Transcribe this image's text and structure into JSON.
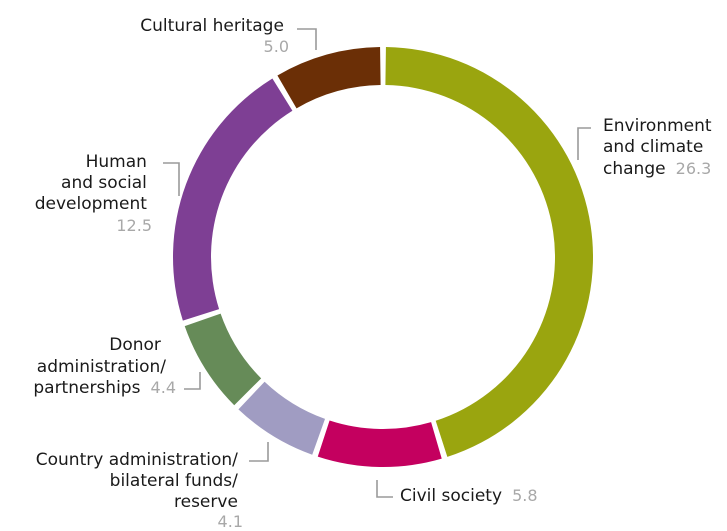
{
  "chart_data": {
    "type": "pie",
    "style": "donut",
    "title": "",
    "series": [
      {
        "name": "",
        "categories": [
          "Environment and climate change",
          "Civil society",
          "Country administration/ bilateral funds/ reserve",
          "Donor administration/ partnerships",
          "Human and social development",
          "Cultural heritage"
        ],
        "values": [
          26.3,
          5.8,
          4.1,
          4.4,
          12.5,
          5.0
        ]
      }
    ],
    "slices": [
      {
        "label_lines": [
          "Environment",
          "and climate",
          "change"
        ],
        "value": 26.3,
        "value_text": "26.3",
        "color": "#9aa50f"
      },
      {
        "label_lines": [
          "Civil society"
        ],
        "value": 5.8,
        "value_text": "5.8",
        "color": "#c4005f"
      },
      {
        "label_lines": [
          "Country administration/",
          "bilateral funds/",
          "reserve"
        ],
        "value": 4.1,
        "value_text": "4.1",
        "color": "#a09cc2"
      },
      {
        "label_lines": [
          "Donor",
          "administration/",
          "partnerships"
        ],
        "value": 4.4,
        "value_text": "4.4",
        "color": "#668b58"
      },
      {
        "label_lines": [
          "Human",
          "and social",
          "development"
        ],
        "value": 12.5,
        "value_text": "12.5",
        "color": "#7e3f94"
      },
      {
        "label_lines": [
          "Cultural heritage"
        ],
        "value": 5.0,
        "value_text": "5.0",
        "color": "#6b2f06"
      }
    ]
  }
}
